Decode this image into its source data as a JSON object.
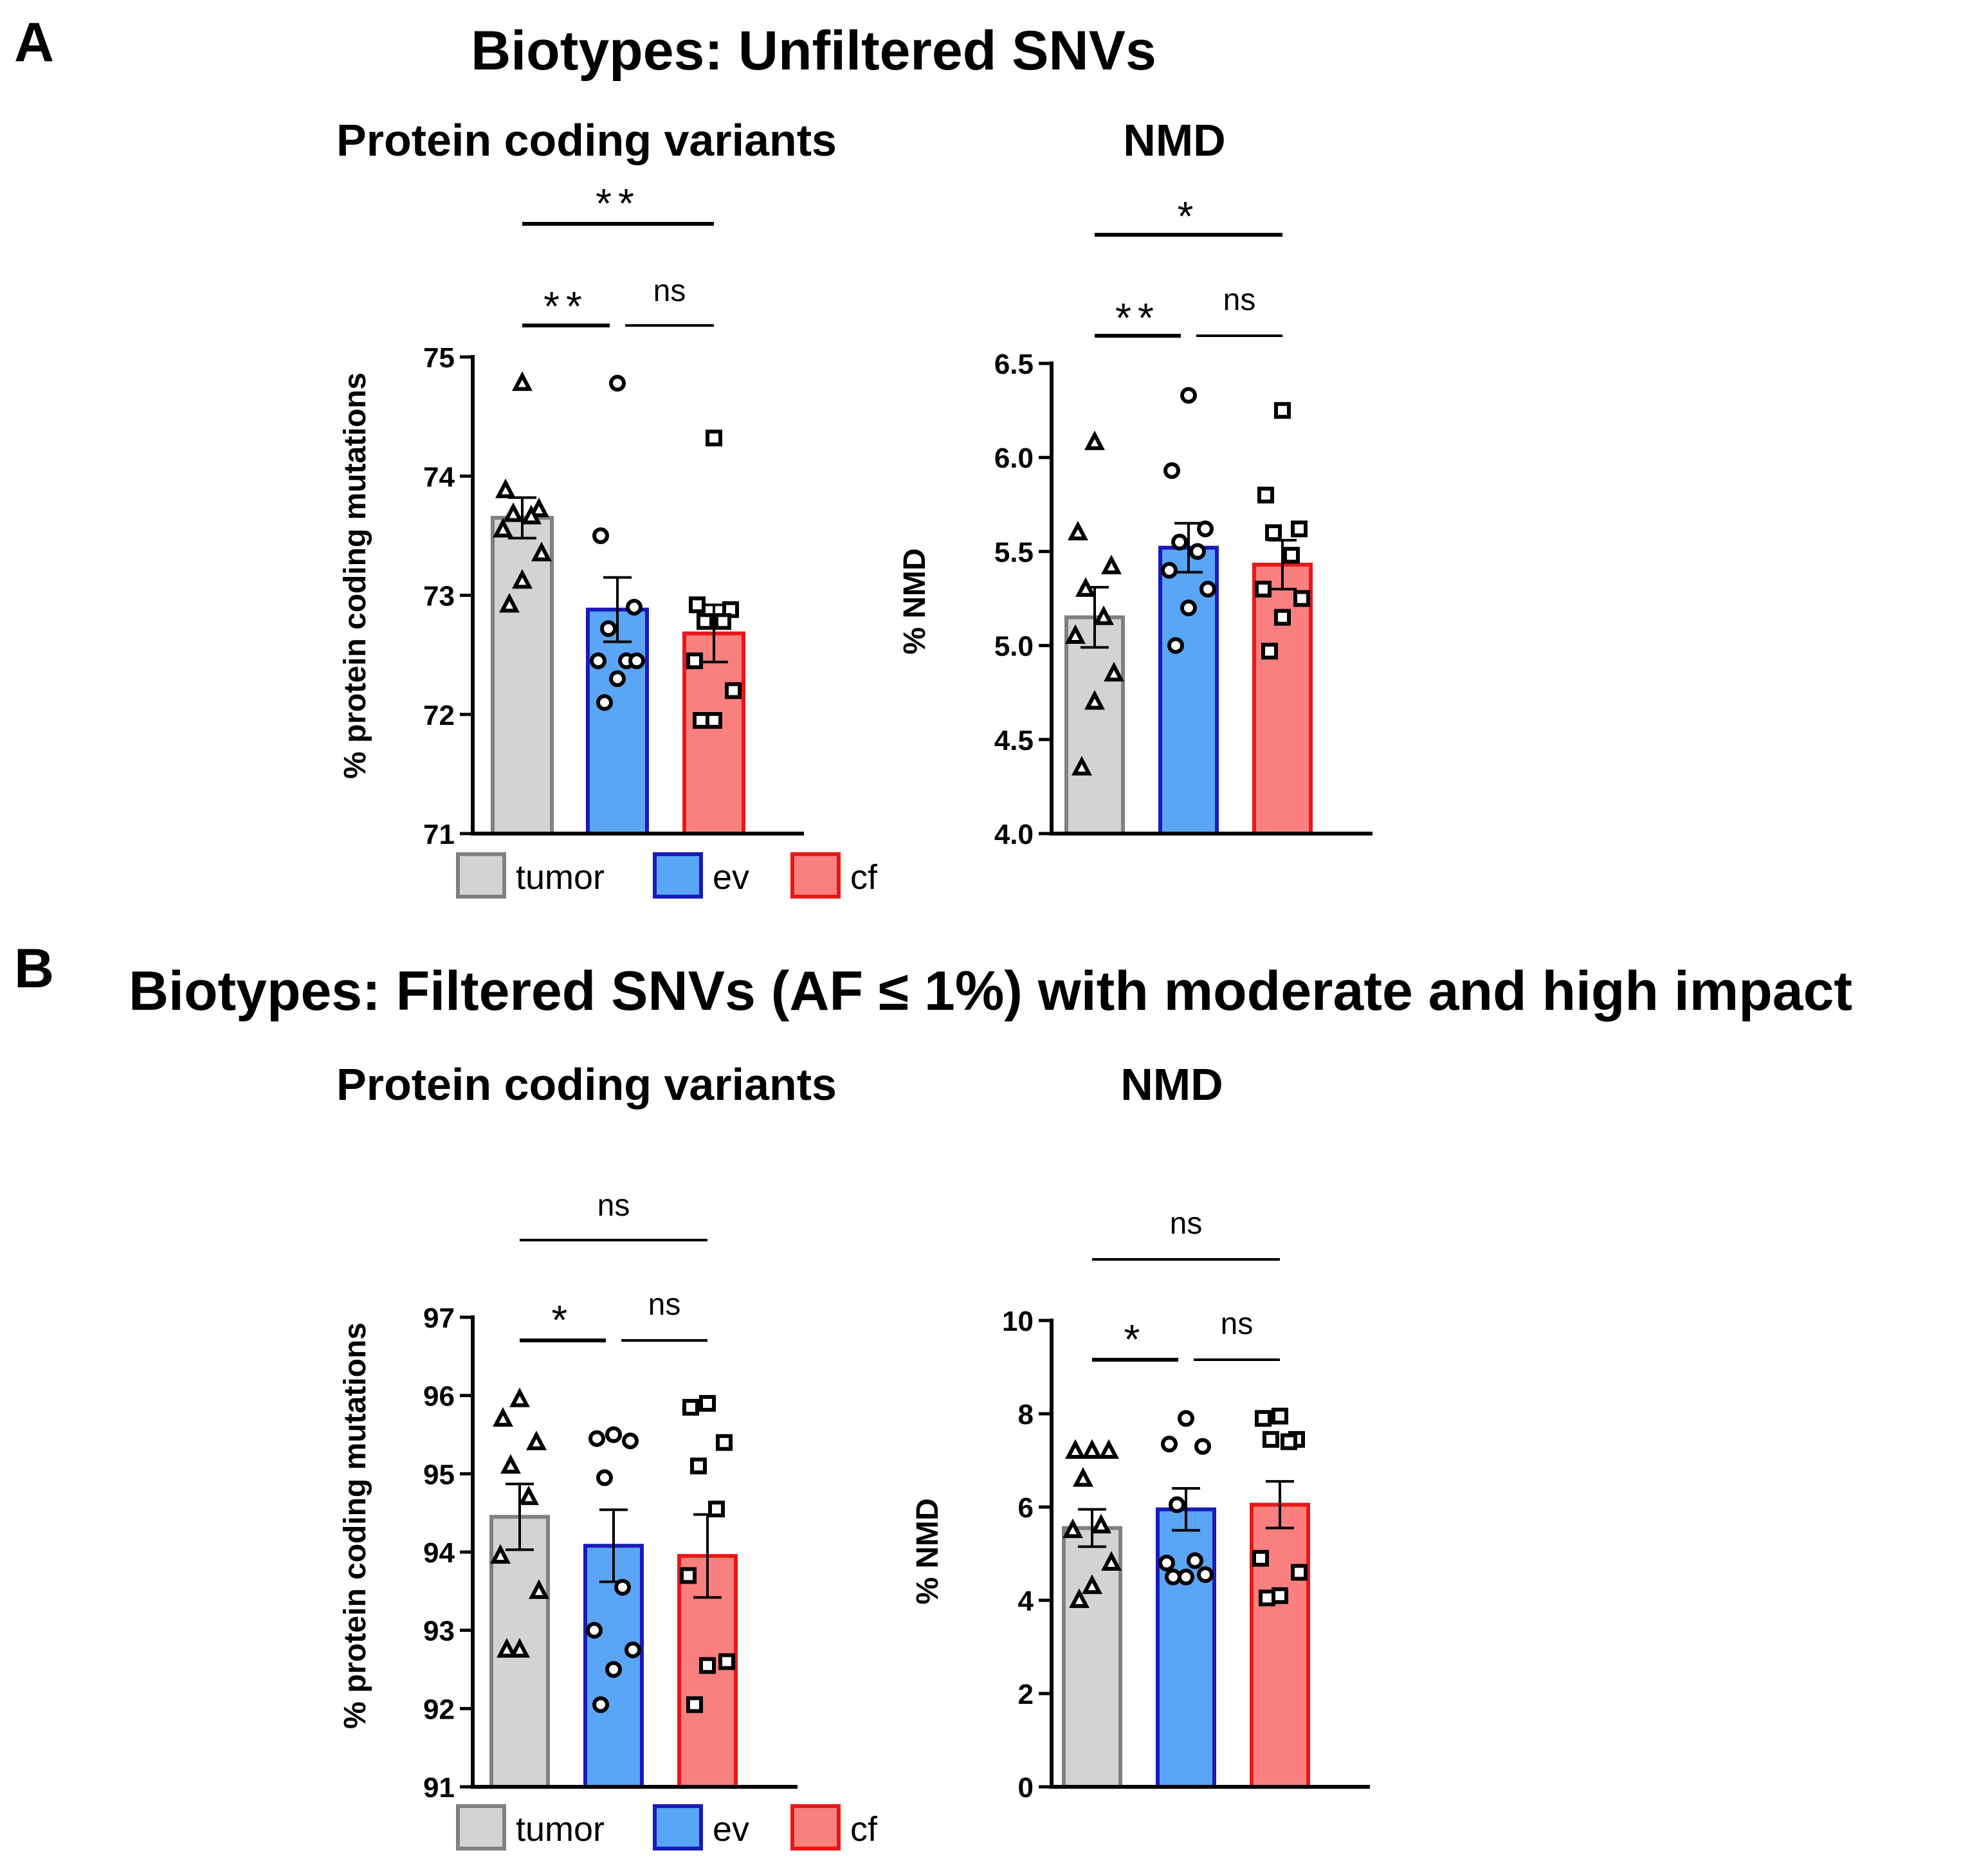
{
  "figure": {
    "panel_a": {
      "letter": "A",
      "title": "Biotypes: Unfiltered SNVs"
    },
    "panel_b": {
      "letter": "B",
      "title": "Biotypes: Filtered SNVs (AF ≤ 1%) with moderate and high impact"
    }
  },
  "legend": {
    "items": [
      {
        "label": "tumor",
        "fill": "#d3d3d3",
        "stroke": "#808080"
      },
      {
        "label": "ev",
        "fill": "#5aa5f5",
        "stroke": "#1a1ab8"
      },
      {
        "label": "cf",
        "fill": "#fa7f7f",
        "stroke": "#e81818"
      }
    ]
  },
  "chart_data": [
    {
      "id": "a-protein",
      "type": "bar",
      "title": "Protein coding variants",
      "ylabel": "% protein coding mutations",
      "xlabel": "",
      "ylim": [
        71,
        75
      ],
      "yticks": [
        71,
        72,
        73,
        74,
        75
      ],
      "categories": [
        "tumor",
        "ev",
        "cf"
      ],
      "values": [
        73.65,
        72.88,
        72.68
      ],
      "sem": [
        0.17,
        0.27,
        0.24
      ],
      "points": [
        [
          74.78,
          73.88,
          73.72,
          73.68,
          73.66,
          73.55,
          73.35,
          73.12,
          72.92
        ],
        [
          74.78,
          73.5,
          72.9,
          72.72,
          72.45,
          72.45,
          72.45,
          72.3,
          72.1
        ],
        [
          74.32,
          72.92,
          72.88,
          72.78,
          72.78,
          72.45,
          72.2,
          71.95,
          71.95
        ]
      ],
      "markers": [
        "triangle",
        "circle",
        "square"
      ],
      "significance": [
        {
          "from": 0,
          "to": 2,
          "label": "**"
        },
        {
          "from": 0,
          "to": 1,
          "label": "**"
        },
        {
          "from": 1,
          "to": 2,
          "label": "ns"
        }
      ]
    },
    {
      "id": "a-nmd",
      "type": "bar",
      "title": "NMD",
      "ylabel": "% NMD",
      "xlabel": "",
      "ylim": [
        4.0,
        6.5
      ],
      "yticks": [
        4.0,
        4.5,
        5.0,
        5.5,
        6.0,
        6.5
      ],
      "categories": [
        "tumor",
        "ev",
        "cf"
      ],
      "values": [
        5.15,
        5.52,
        5.43
      ],
      "sem": [
        0.16,
        0.13,
        0.13
      ],
      "points": [
        [
          6.08,
          5.6,
          5.42,
          5.3,
          5.15,
          5.05,
          4.85,
          4.7,
          4.35
        ],
        [
          6.33,
          5.93,
          5.62,
          5.55,
          5.5,
          5.4,
          5.3,
          5.2,
          5.0
        ],
        [
          6.25,
          5.8,
          5.62,
          5.6,
          5.48,
          5.3,
          5.25,
          5.15,
          4.97
        ]
      ],
      "markers": [
        "triangle",
        "circle",
        "square"
      ],
      "significance": [
        {
          "from": 0,
          "to": 2,
          "label": "*"
        },
        {
          "from": 0,
          "to": 1,
          "label": "**"
        },
        {
          "from": 1,
          "to": 2,
          "label": "ns"
        }
      ]
    },
    {
      "id": "b-protein",
      "type": "bar",
      "title": "Protein coding variants",
      "ylabel": "% protein coding mutations",
      "xlabel": "",
      "ylim": [
        91,
        97
      ],
      "yticks": [
        91,
        92,
        93,
        94,
        95,
        96,
        97
      ],
      "categories": [
        "tumor",
        "ev",
        "cf"
      ],
      "values": [
        94.45,
        94.08,
        93.95
      ],
      "sem": [
        0.42,
        0.46,
        0.53
      ],
      "points": [
        [
          95.95,
          95.7,
          95.4,
          95.1,
          94.7,
          93.95,
          93.5,
          92.75,
          92.75
        ],
        [
          95.5,
          95.45,
          95.42,
          94.95,
          93.55,
          93.0,
          92.75,
          92.5,
          92.05
        ],
        [
          95.9,
          95.85,
          95.4,
          95.1,
          94.55,
          93.7,
          92.6,
          92.55,
          92.05
        ]
      ],
      "markers": [
        "triangle",
        "circle",
        "square"
      ],
      "significance": [
        {
          "from": 0,
          "to": 2,
          "label": "ns"
        },
        {
          "from": 0,
          "to": 1,
          "label": "*"
        },
        {
          "from": 1,
          "to": 2,
          "label": "ns"
        }
      ]
    },
    {
      "id": "b-nmd",
      "type": "bar",
      "title": "NMD",
      "ylabel": "% NMD",
      "xlabel": "",
      "ylim": [
        0,
        10
      ],
      "yticks": [
        0,
        2,
        4,
        6,
        8,
        10
      ],
      "categories": [
        "tumor",
        "ev",
        "cf"
      ],
      "values": [
        5.55,
        5.95,
        6.05
      ],
      "sem": [
        0.4,
        0.45,
        0.5
      ],
      "points": [
        [
          7.2,
          7.2,
          7.2,
          6.6,
          5.6,
          5.5,
          4.8,
          4.3,
          4.0
        ],
        [
          7.9,
          7.35,
          7.3,
          6.05,
          4.85,
          4.8,
          4.55,
          4.5,
          4.5
        ],
        [
          7.95,
          7.9,
          7.45,
          7.45,
          7.4,
          4.9,
          4.6,
          4.1,
          4.05
        ]
      ],
      "markers": [
        "triangle",
        "circle",
        "square"
      ],
      "significance": [
        {
          "from": 0,
          "to": 2,
          "label": "ns"
        },
        {
          "from": 0,
          "to": 1,
          "label": "*"
        },
        {
          "from": 1,
          "to": 2,
          "label": "ns"
        }
      ]
    }
  ]
}
